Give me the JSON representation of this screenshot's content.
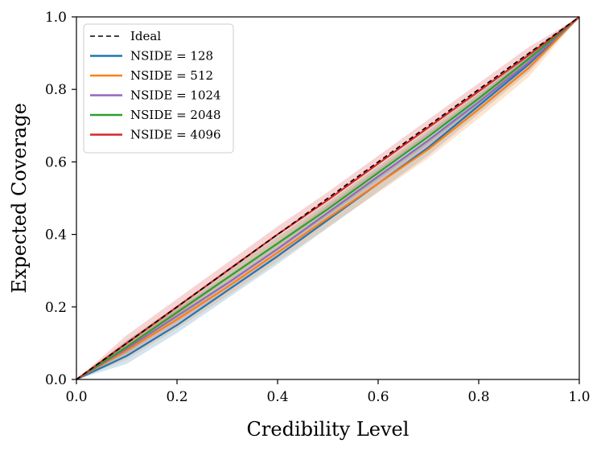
{
  "chart_data": {
    "type": "line",
    "title": "",
    "xlabel": "Credibility Level",
    "ylabel": "Expected Coverage",
    "xlim": [
      0.0,
      1.0
    ],
    "ylim": [
      0.0,
      1.0
    ],
    "xticks": [
      "0.0",
      "0.2",
      "0.4",
      "0.6",
      "0.8",
      "1.0"
    ],
    "yticks": [
      "0.0",
      "0.2",
      "0.4",
      "0.6",
      "0.8",
      "1.0"
    ],
    "grid": false,
    "legend_position": "top-left",
    "x": [
      0.0,
      0.1,
      0.2,
      0.3,
      0.4,
      0.5,
      0.6,
      0.7,
      0.8,
      0.9,
      1.0
    ],
    "ideal": {
      "name": "Ideal",
      "color": "#000000",
      "style": "dashed",
      "values": [
        0.0,
        0.1,
        0.2,
        0.3,
        0.4,
        0.5,
        0.6,
        0.7,
        0.8,
        0.9,
        1.0
      ]
    },
    "series": [
      {
        "name": "NSIDE = 128",
        "color": "#1f77b4",
        "values": [
          0.0,
          0.065,
          0.15,
          0.245,
          0.34,
          0.44,
          0.54,
          0.64,
          0.755,
          0.87,
          1.0
        ],
        "band": 0.022
      },
      {
        "name": "NSIDE = 512",
        "color": "#ff7f0e",
        "values": [
          0.0,
          0.08,
          0.165,
          0.255,
          0.35,
          0.445,
          0.54,
          0.635,
          0.745,
          0.86,
          1.0
        ],
        "band": 0.025
      },
      {
        "name": "NSIDE = 1024",
        "color": "#9467bd",
        "values": [
          0.0,
          0.085,
          0.175,
          0.265,
          0.36,
          0.46,
          0.56,
          0.66,
          0.765,
          0.875,
          1.0
        ],
        "band": 0.02
      },
      {
        "name": "NSIDE = 2048",
        "color": "#2ca02c",
        "values": [
          0.0,
          0.09,
          0.185,
          0.28,
          0.375,
          0.47,
          0.57,
          0.67,
          0.775,
          0.885,
          1.0
        ],
        "band": 0.018
      },
      {
        "name": "NSIDE = 4096",
        "color": "#d62728",
        "values": [
          0.0,
          0.1,
          0.2,
          0.3,
          0.4,
          0.495,
          0.595,
          0.695,
          0.795,
          0.895,
          1.0
        ],
        "band": 0.022
      }
    ]
  }
}
